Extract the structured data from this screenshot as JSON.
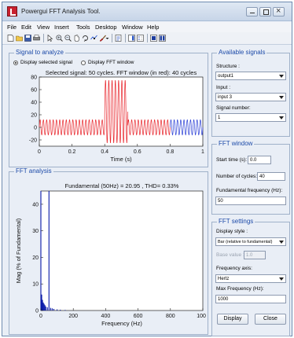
{
  "window": {
    "title": "Powergui FFT Analysis Tool."
  },
  "menu": [
    "File",
    "Edit",
    "View",
    "Insert",
    "Tools",
    "Desktop",
    "Window",
    "Help"
  ],
  "toolbar_icons": [
    "new-file-icon",
    "open-folder-icon",
    "save-icon",
    "print-icon",
    "pointer-icon",
    "zoom-in-icon",
    "zoom-out-icon",
    "pan-icon",
    "rotate-icon",
    "data-cursor-icon",
    "brush-icon",
    "link-plot-icon",
    "colorbar-icon",
    "legend-icon",
    "hide-plot-tools-icon",
    "show-plot-tools-icon"
  ],
  "signal_panel": {
    "title": "Signal to analyze",
    "radio_selected": "Display selected signal",
    "radio_fft": "Display FFT window",
    "selected_option": "radio_selected"
  },
  "fft_panel": {
    "title": "FFT analysis"
  },
  "available_signals": {
    "title": "Available signals",
    "structure_label": "Structure :",
    "structure_value": "output1",
    "input_label": "Input :",
    "input_value": "input 3",
    "signal_number_label": "Signal number:",
    "signal_number_value": "1"
  },
  "fft_window": {
    "title": "FFT window",
    "start_time_label": "Start time (s):",
    "start_time_value": "0.0",
    "cycles_label": "Number of cycles:",
    "cycles_value": "40",
    "fund_freq_label": "Fundamental frequency (Hz):",
    "fund_freq_value": "50"
  },
  "fft_settings": {
    "title": "FFT settings",
    "display_style_label": "Display style :",
    "display_style_value": "Bar (relative to fundamental)",
    "base_value_label": "Base value :",
    "base_value_value": "1.0",
    "freq_axis_label": "Frequency axis:",
    "freq_axis_value": "Hertz",
    "max_freq_label": "Max Frequency (Hz):",
    "max_freq_value": "1000",
    "display_button": "Display",
    "close_button": "Close"
  },
  "chart_data": [
    {
      "type": "line",
      "title": "Selected signal: 50 cycles. FFT window (in red): 40 cycles",
      "xlabel": "Time (s)",
      "ylabel": "",
      "xlim": [
        0,
        1
      ],
      "ylim": [
        -30,
        80
      ],
      "xticks": [
        "0",
        "0.2",
        "0.4",
        "0.6",
        "0.8",
        "1"
      ],
      "yticks": [
        "80",
        "60",
        "40",
        "20",
        "0",
        "-20"
      ],
      "series": [
        {
          "color": "#e8232a",
          "x_range": [
            0,
            0.8
          ],
          "baseline_amplitude": 12,
          "burst": {
            "x_range": [
              0.4,
              0.54
            ],
            "min": -25,
            "max": 75
          }
        },
        {
          "color": "#2b3fd6",
          "x_range": [
            0.8,
            1.0
          ],
          "baseline_amplitude": 12
        }
      ],
      "frequency_hz": 50,
      "grid": false
    },
    {
      "type": "bar",
      "title": "Fundamental (50Hz) = 20.95 , THD= 0.33%",
      "xlabel": "Frequency (Hz)",
      "ylabel": "Mag (% of Fundamental)",
      "xlim": [
        0,
        1000
      ],
      "ylim": [
        0,
        45
      ],
      "xticks": [
        "0",
        "200",
        "400",
        "600",
        "800",
        "1000"
      ],
      "yticks": [
        "40",
        "30",
        "20",
        "10",
        "0"
      ],
      "bars": [
        {
          "freq": 0,
          "value": 45
        },
        {
          "freq": 50,
          "value": 45
        },
        {
          "freq": 5,
          "value": 6
        },
        {
          "freq": 10,
          "value": 4
        },
        {
          "freq": 15,
          "value": 3
        },
        {
          "freq": 20,
          "value": 2.5
        },
        {
          "freq": 25,
          "value": 2
        },
        {
          "freq": 30,
          "value": 1.5
        },
        {
          "freq": 40,
          "value": 1.2
        },
        {
          "freq": 60,
          "value": 1.0
        },
        {
          "freq": 70,
          "value": 0.8
        },
        {
          "freq": 80,
          "value": 0.6
        },
        {
          "freq": 100,
          "value": 0.4
        },
        {
          "freq": 120,
          "value": 0.3
        },
        {
          "freq": 150,
          "value": 0.2
        }
      ],
      "color": "#0a1aa8"
    }
  ]
}
